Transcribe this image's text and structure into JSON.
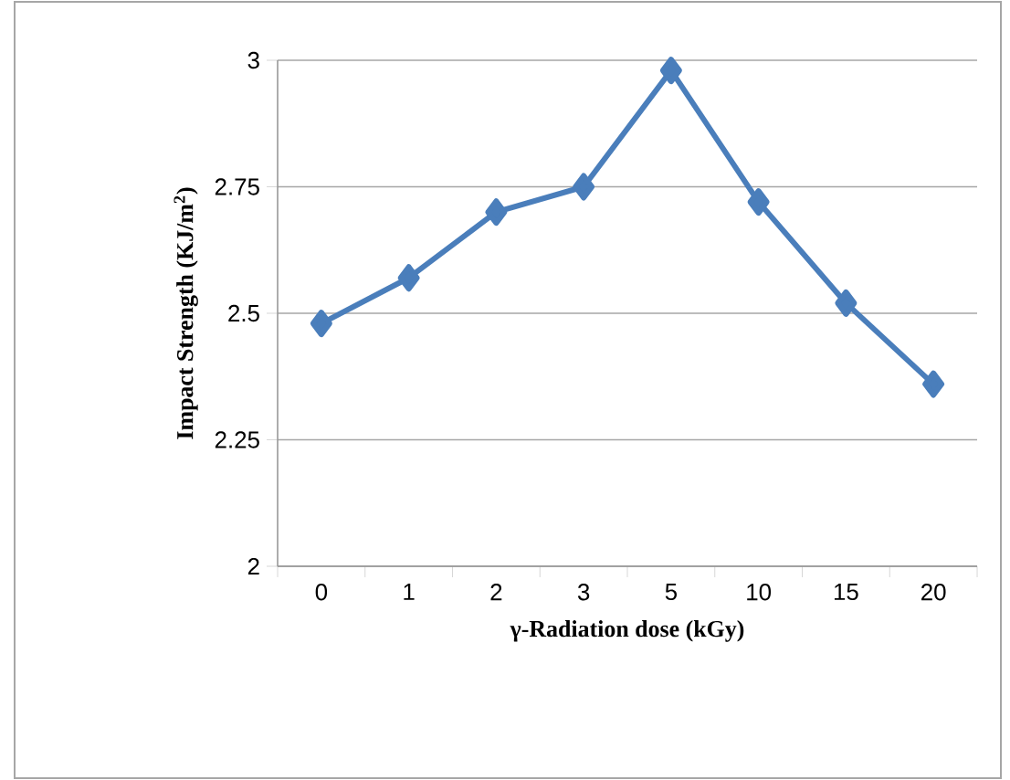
{
  "chart_data": {
    "type": "line",
    "xlabel": "γ-Radiation dose (kGy)",
    "ylabel": "Impact Strength (KJ/m$^{2}$)",
    "categories": [
      "0",
      "1",
      "2",
      "3",
      "5",
      "10",
      "15",
      "20"
    ],
    "series": [
      {
        "color": "#4a7ebb",
        "values": [
          2.48,
          2.57,
          2.7,
          2.75,
          2.98,
          2.72,
          2.52,
          2.36
        ]
      }
    ],
    "ylim": [
      2,
      3
    ],
    "yticks": [
      2,
      2.25,
      2.5,
      2.75,
      3
    ],
    "grid": "y",
    "marker": "diamond",
    "line_style": "solid"
  }
}
